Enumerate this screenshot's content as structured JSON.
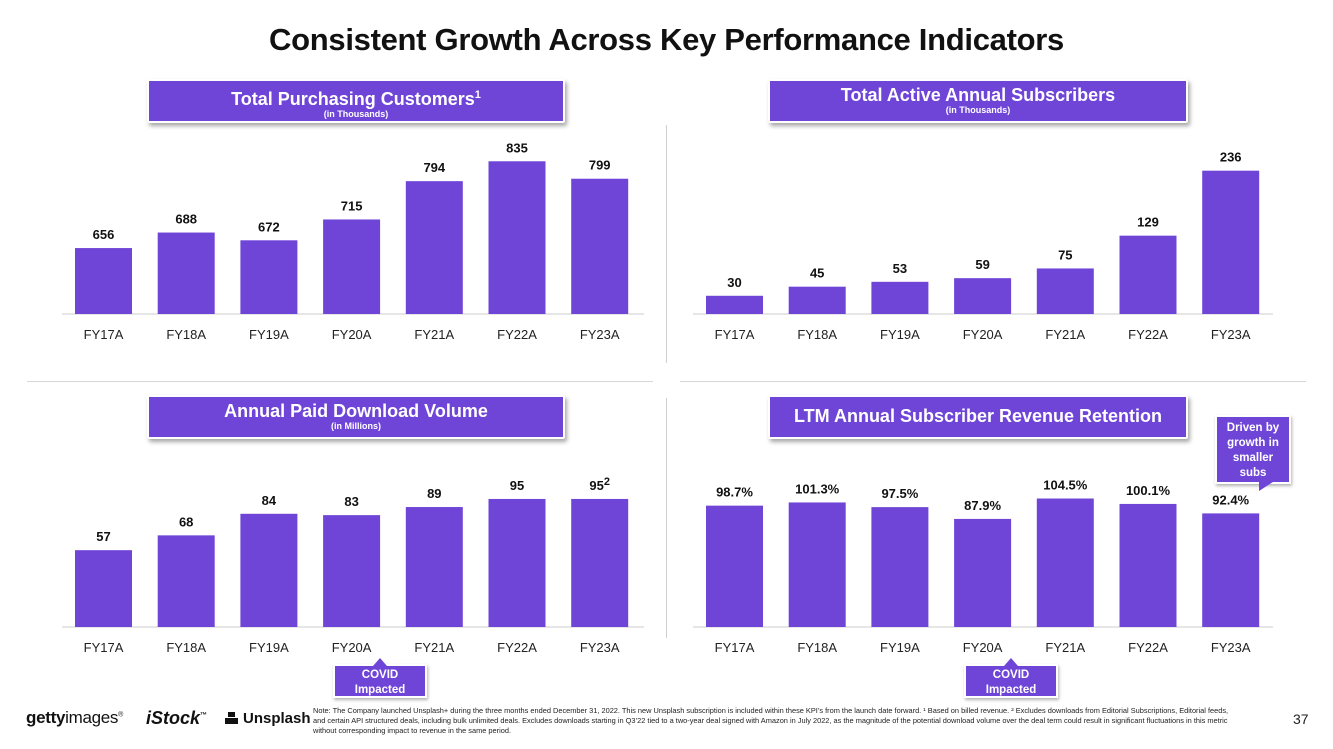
{
  "title": "Consistent Growth Across Key Performance Indicators",
  "chart_data": [
    {
      "type": "bar",
      "title": "Total Purchasing Customers",
      "title_sup": "1",
      "subtitle": "(in Thousands)",
      "categories": [
        "FY17A",
        "FY18A",
        "FY19A",
        "FY20A",
        "FY21A",
        "FY22A",
        "FY23A"
      ],
      "values": [
        656,
        688,
        672,
        715,
        794,
        835,
        799
      ],
      "labels": [
        "656",
        "688",
        "672",
        "715",
        "794",
        "835",
        "799"
      ],
      "ylim": [
        520,
        850
      ],
      "color": "#6f45d8"
    },
    {
      "type": "bar",
      "title": "Total Active Annual Subscribers",
      "subtitle": "(in Thousands)",
      "categories": [
        "FY17A",
        "FY18A",
        "FY19A",
        "FY20A",
        "FY21A",
        "FY22A",
        "FY23A"
      ],
      "values": [
        30,
        45,
        53,
        59,
        75,
        129,
        236
      ],
      "labels": [
        "30",
        "45",
        "53",
        "59",
        "75",
        "129",
        "236"
      ],
      "ylim": [
        0,
        247
      ],
      "color": "#6f45d8"
    },
    {
      "type": "bar",
      "title": "Annual Paid Download Volume",
      "subtitle": "(in Millions)",
      "categories": [
        "FY17A",
        "FY18A",
        "FY19A",
        "FY20A",
        "FY21A",
        "FY22A",
        "FY23A"
      ],
      "values": [
        57,
        68,
        84,
        83,
        89,
        95,
        95
      ],
      "labels": [
        "57",
        "68",
        "84",
        "83",
        "89",
        "95",
        "95"
      ],
      "last_label_sup": "2",
      "ylim": [
        0,
        115
      ],
      "color": "#6f45d8"
    },
    {
      "type": "bar",
      "title": "LTM Annual Subscriber Revenue Retention",
      "categories": [
        "FY17A",
        "FY18A",
        "FY19A",
        "FY20A",
        "FY21A",
        "FY22A",
        "FY23A"
      ],
      "values": [
        98.7,
        101.3,
        97.5,
        87.9,
        104.5,
        100.1,
        92.4
      ],
      "labels": [
        "98.7%",
        "101.3%",
        "97.5%",
        "87.9%",
        "104.5%",
        "100.1%",
        "92.4%"
      ],
      "ylim": [
        0,
        122
      ],
      "color": "#6f45d8"
    }
  ],
  "annotations": {
    "covid_line1": "COVID",
    "covid_line2": "Impacted",
    "callout_lines": [
      "Driven by",
      "growth in",
      "smaller",
      "subs"
    ]
  },
  "footer": {
    "logo_getty_bold": "getty",
    "logo_getty_light": "images",
    "logo_getty_tm": "®",
    "logo_istock": "iStock",
    "logo_istock_tm": "™",
    "logo_unsplash": "Unsplash",
    "note": "Note: The Company launched Unsplash+ during the three months ended December 31, 2022. This new Unsplash subscription is included within these KPI’s from the launch date forward. ¹ Based on billed revenue. ² Excludes downloads from Editorial Subscriptions, Editorial feeds, and certain API structured deals, including bulk unlimited deals. Excludes downloads starting in Q3’22 tied to a two-year deal signed with Amazon in July 2022, as the magnitude of the potential download volume over the deal term could result in significant fluctuations in this metric without corresponding impact to revenue in the same period.",
    "page_number": "37"
  }
}
